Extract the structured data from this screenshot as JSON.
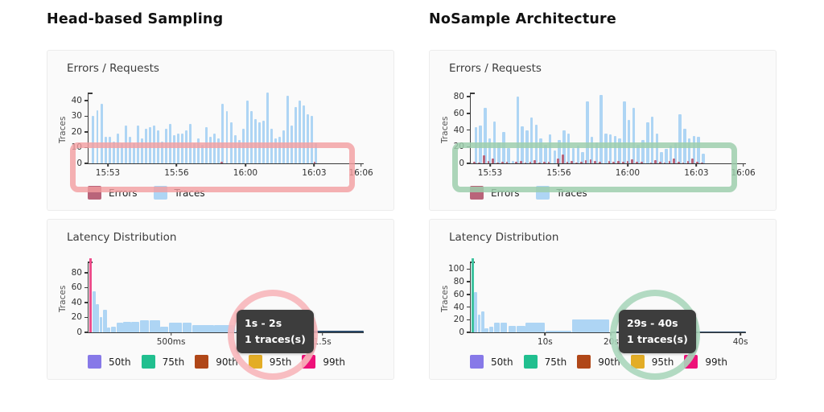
{
  "columns": [
    {
      "title": "Head-based Sampling",
      "tooltip": {
        "line1": "1s - 2s",
        "line2": "1 traces(s)"
      },
      "highlight_color": "rgba(242,158,160,0.8)",
      "circle_color": "rgba(247,182,186,0.9)"
    },
    {
      "title": "NoSample Architecture",
      "tooltip": {
        "line1": "29s - 40s",
        "line2": "1 traces(s)"
      },
      "highlight_color": "rgba(157,206,173,0.85)",
      "circle_color": "rgba(170,214,187,0.9)"
    }
  ],
  "chart_data": [
    {
      "type": "bar",
      "title": "Errors / Requests",
      "ylabel": "Traces",
      "ylim": [
        0,
        45
      ],
      "yticks": [
        0,
        10,
        20,
        30,
        40
      ],
      "xticks": [
        {
          "label": "15:53",
          "pos": 7
        },
        {
          "label": "15:56",
          "pos": 32
        },
        {
          "label": "16:00",
          "pos": 57
        },
        {
          "label": "16:03",
          "pos": 82
        },
        {
          "label": "16:06",
          "pos": 99
        }
      ],
      "span": 82,
      "legend": [
        {
          "label": "Errors",
          "color": "#b9647a"
        },
        {
          "label": "Traces",
          "color": "#aed5f4"
        }
      ],
      "series": [
        {
          "name": "Traces",
          "color": "#aed5f4",
          "values": [
            30,
            34,
            38,
            17,
            17,
            14,
            19,
            13,
            24,
            17,
            13,
            24,
            16,
            22,
            23,
            24,
            21,
            14,
            22,
            25,
            18,
            19,
            19,
            21,
            25,
            13,
            16,
            12,
            23,
            17,
            19,
            16,
            38,
            33,
            26,
            18,
            15,
            22,
            40,
            33,
            28,
            26,
            27,
            45,
            22,
            16,
            17,
            21,
            43,
            24,
            36,
            40,
            37,
            31,
            30,
            13
          ]
        },
        {
          "name": "Errors",
          "color": "#b9647a",
          "values": [
            0,
            0,
            0,
            0,
            0,
            0,
            0,
            0,
            0,
            0,
            0,
            0,
            0,
            0,
            0,
            0,
            0,
            0,
            0,
            0,
            0,
            0,
            0,
            0,
            0,
            0,
            0,
            0,
            0,
            0,
            0,
            0,
            1,
            0,
            0,
            0,
            0,
            0,
            0,
            0,
            0,
            0,
            0,
            0,
            0,
            0,
            0,
            0,
            0,
            0,
            0,
            0,
            0,
            0,
            0,
            1
          ]
        }
      ]
    },
    {
      "type": "bar",
      "title": "Errors / Requests",
      "ylabel": "Traces",
      "ylim": [
        0,
        85
      ],
      "yticks": [
        0,
        20,
        40,
        60,
        80
      ],
      "xticks": [
        {
          "label": "15:53",
          "pos": 7
        },
        {
          "label": "15:56",
          "pos": 32
        },
        {
          "label": "16:00",
          "pos": 57
        },
        {
          "label": "16:03",
          "pos": 82
        },
        {
          "label": "16:06",
          "pos": 99
        }
      ],
      "span": 84,
      "legend": [
        {
          "label": "Errors",
          "color": "#b9647a"
        },
        {
          "label": "Traces",
          "color": "#aed5f4"
        }
      ],
      "series": [
        {
          "name": "Traces",
          "color": "#aed5f4",
          "values": [
            43,
            45,
            67,
            30,
            50,
            25,
            38,
            18,
            3,
            80,
            44,
            40,
            55,
            46,
            30,
            22,
            35,
            15,
            28,
            40,
            36,
            18,
            21,
            14,
            74,
            32,
            25,
            82,
            36,
            35,
            33,
            30,
            74,
            52,
            67,
            22,
            28,
            49,
            56,
            36,
            14,
            17,
            21,
            24,
            59,
            42,
            30,
            33,
            32,
            12
          ]
        },
        {
          "name": "Errors",
          "color": "#b9647a",
          "values": [
            2,
            1,
            10,
            3,
            6,
            1,
            2,
            2,
            0,
            2,
            3,
            1,
            2,
            4,
            1,
            2,
            2,
            0,
            6,
            11,
            2,
            3,
            1,
            2,
            4,
            5,
            3,
            2,
            0,
            3,
            2,
            3,
            2,
            3,
            5,
            2,
            2,
            0,
            1,
            4,
            2,
            1,
            3,
            6,
            2,
            1,
            3,
            6,
            2,
            1
          ]
        }
      ]
    },
    {
      "type": "bar",
      "title": "Latency Distribution",
      "ylabel": "Traces",
      "ylim": [
        0,
        95
      ],
      "yticks": [
        0,
        20,
        40,
        60,
        80
      ],
      "xticks": [
        {
          "label": "500ms",
          "pos": 30
        },
        {
          "label": "1.5s",
          "pos": 85
        }
      ],
      "marker": {
        "pos": 0.4,
        "color": "#ee4d8b",
        "name": "99th-percentile-marker"
      },
      "bars": [
        [
          1.4,
          1.1,
          55
        ],
        [
          2.7,
          1.1,
          38
        ],
        [
          4,
          1.1,
          20
        ],
        [
          5.3,
          1.3,
          30
        ],
        [
          6.8,
          1.1,
          7
        ],
        [
          8.1,
          1.9,
          8
        ],
        [
          10.2,
          2.3,
          13
        ],
        [
          12.7,
          2.7,
          14
        ],
        [
          15.6,
          2.9,
          14
        ],
        [
          18.7,
          3.3,
          16
        ],
        [
          22.2,
          3.7,
          16
        ],
        [
          26.1,
          2.9,
          8
        ],
        [
          29.2,
          4.7,
          13
        ],
        [
          34.1,
          3.4,
          13
        ],
        [
          37.7,
          7.8,
          10
        ],
        [
          45.7,
          7.6,
          10
        ],
        [
          53.5,
          3.8,
          2
        ],
        [
          57.5,
          42.5,
          1.8,
          "#2b4a69"
        ]
      ],
      "legend": [
        {
          "label": "50th",
          "color": "#8779e8"
        },
        {
          "label": "75th",
          "color": "#21bf8f"
        },
        {
          "label": "90th",
          "color": "#b04718"
        },
        {
          "label": "95th",
          "color": "#e3ad26"
        },
        {
          "label": "99th",
          "color": "#ee1179"
        }
      ]
    },
    {
      "type": "bar",
      "title": "Latency Distribution",
      "ylabel": "Traces",
      "ylim": [
        0,
        112
      ],
      "yticks": [
        0,
        20,
        40,
        60,
        80,
        100
      ],
      "xticks": [
        {
          "label": "10s",
          "pos": 27
        },
        {
          "label": "20s",
          "pos": 51
        },
        {
          "label": "30s",
          "pos": 74
        },
        {
          "label": "40s",
          "pos": 98
        }
      ],
      "marker": {
        "pos": 0.4,
        "color": "#3ec39f",
        "name": "75th-percentile-marker"
      },
      "bars": [
        [
          1.2,
          1.1,
          64
        ],
        [
          2.5,
          1.1,
          28
        ],
        [
          3.8,
          1.1,
          33
        ],
        [
          5.1,
          1.3,
          7
        ],
        [
          6.6,
          1.7,
          9
        ],
        [
          8.5,
          2.1,
          15
        ],
        [
          10.8,
          2.5,
          15
        ],
        [
          13.6,
          2.9,
          10
        ],
        [
          16.8,
          3.1,
          10
        ],
        [
          20,
          6.8,
          15
        ],
        [
          27.2,
          9.3,
          2
        ],
        [
          36.8,
          13.6,
          21
        ],
        [
          51,
          49,
          1.8,
          "#2b4a69"
        ]
      ],
      "legend": [
        {
          "label": "50th",
          "color": "#8779e8"
        },
        {
          "label": "75th",
          "color": "#21bf8f"
        },
        {
          "label": "90th",
          "color": "#b04718"
        },
        {
          "label": "95th",
          "color": "#e3ad26"
        },
        {
          "label": "99th",
          "color": "#ee1179"
        }
      ]
    }
  ]
}
